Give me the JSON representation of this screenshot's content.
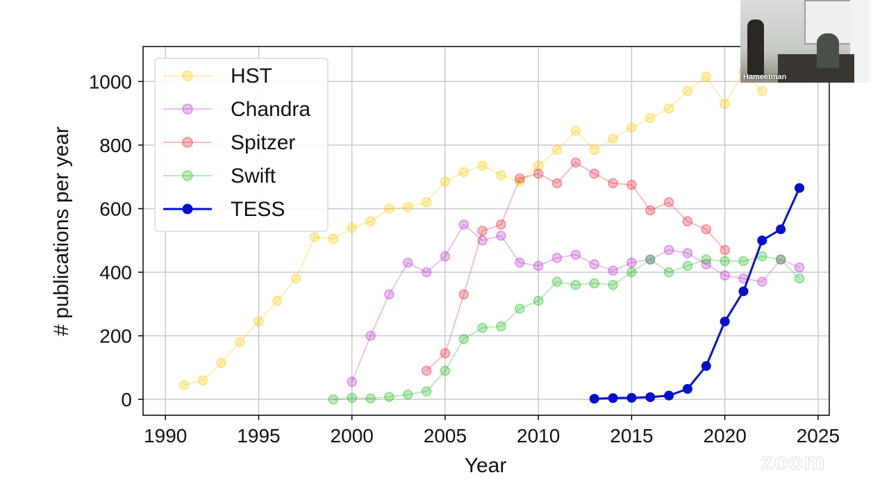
{
  "chart_data": {
    "type": "line",
    "title": "",
    "xlabel": "Year",
    "ylabel": "# publications per year",
    "xlim": [
      1988.8,
      2025.6
    ],
    "ylim": [
      -50,
      1110
    ],
    "xticks": [
      1990,
      1995,
      2000,
      2005,
      2010,
      2015,
      2020,
      2025
    ],
    "yticks": [
      0,
      200,
      400,
      600,
      800,
      1000
    ],
    "grid": true,
    "legend_position": "top-left",
    "series": [
      {
        "name": "HST",
        "color": "#f7c800",
        "opacity": 0.3,
        "x": [
          1991,
          1992,
          1993,
          1994,
          1995,
          1996,
          1997,
          1998,
          1999,
          2000,
          2001,
          2002,
          2003,
          2004,
          2005,
          2006,
          2007,
          2008,
          2009,
          2010,
          2011,
          2012,
          2013,
          2014,
          2015,
          2016,
          2017,
          2018,
          2019,
          2020,
          2021,
          2022
        ],
        "y": [
          45,
          60,
          115,
          180,
          245,
          310,
          380,
          510,
          505,
          540,
          560,
          600,
          605,
          620,
          685,
          715,
          735,
          705,
          685,
          735,
          785,
          845,
          785,
          820,
          855,
          885,
          915,
          970,
          1015,
          930,
          1030,
          970
        ]
      },
      {
        "name": "Chandra",
        "color": "#bb33cc",
        "opacity": 0.3,
        "x": [
          2000,
          2001,
          2002,
          2003,
          2004,
          2005,
          2006,
          2007,
          2008,
          2009,
          2010,
          2011,
          2012,
          2013,
          2014,
          2015,
          2016,
          2017,
          2018,
          2019,
          2020,
          2021,
          2022,
          2023,
          2024
        ],
        "y": [
          55,
          200,
          330,
          430,
          400,
          450,
          550,
          500,
          515,
          430,
          420,
          445,
          455,
          425,
          405,
          430,
          440,
          470,
          460,
          425,
          390,
          380,
          370,
          440,
          415
        ]
      },
      {
        "name": "Spitzer",
        "color": "#ee2233",
        "opacity": 0.3,
        "x": [
          2004,
          2005,
          2006,
          2007,
          2008,
          2009,
          2010,
          2011,
          2012,
          2013,
          2014,
          2015,
          2016,
          2017,
          2018,
          2019,
          2020
        ],
        "y": [
          90,
          145,
          330,
          530,
          550,
          695,
          710,
          680,
          745,
          710,
          680,
          675,
          595,
          620,
          560,
          535,
          470
        ]
      },
      {
        "name": "Swift",
        "color": "#22bb22",
        "opacity": 0.3,
        "x": [
          1999,
          2000,
          2001,
          2002,
          2003,
          2004,
          2005,
          2006,
          2007,
          2008,
          2009,
          2010,
          2011,
          2012,
          2013,
          2014,
          2015,
          2016,
          2017,
          2018,
          2019,
          2020,
          2021,
          2022,
          2023,
          2024
        ],
        "y": [
          0,
          5,
          3,
          8,
          15,
          25,
          90,
          190,
          225,
          230,
          285,
          310,
          370,
          360,
          365,
          360,
          400,
          440,
          400,
          420,
          440,
          435,
          435,
          450,
          440,
          380
        ]
      },
      {
        "name": "TESS",
        "color": "#0010cc",
        "opacity": 1.0,
        "x": [
          2013,
          2014,
          2015,
          2016,
          2017,
          2018,
          2019,
          2020,
          2021,
          2022,
          2023,
          2024
        ],
        "y": [
          2,
          4,
          5,
          7,
          12,
          33,
          105,
          245,
          340,
          500,
          535,
          665
        ]
      }
    ]
  },
  "video_overlay": {
    "name": "Hameetman"
  },
  "watermark": {
    "text": "zoom"
  }
}
